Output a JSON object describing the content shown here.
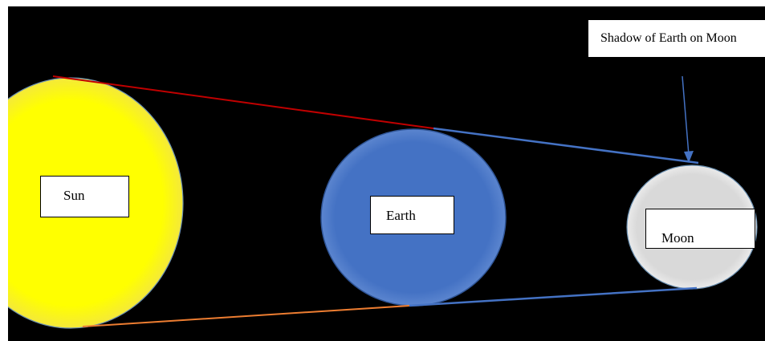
{
  "labels": {
    "sun": "Sun",
    "earth": "Earth",
    "moon": "Moon",
    "shadow": "Shadow of Earth on Moon"
  },
  "colors": {
    "background": "#000000",
    "sun": "#ffff00",
    "earth": "#4472c4",
    "moon": "#d9d9d9",
    "upper_sun_line": "#c00000",
    "lower_sun_line": "#ed7d31",
    "shadow_lines": "#4472c4"
  }
}
